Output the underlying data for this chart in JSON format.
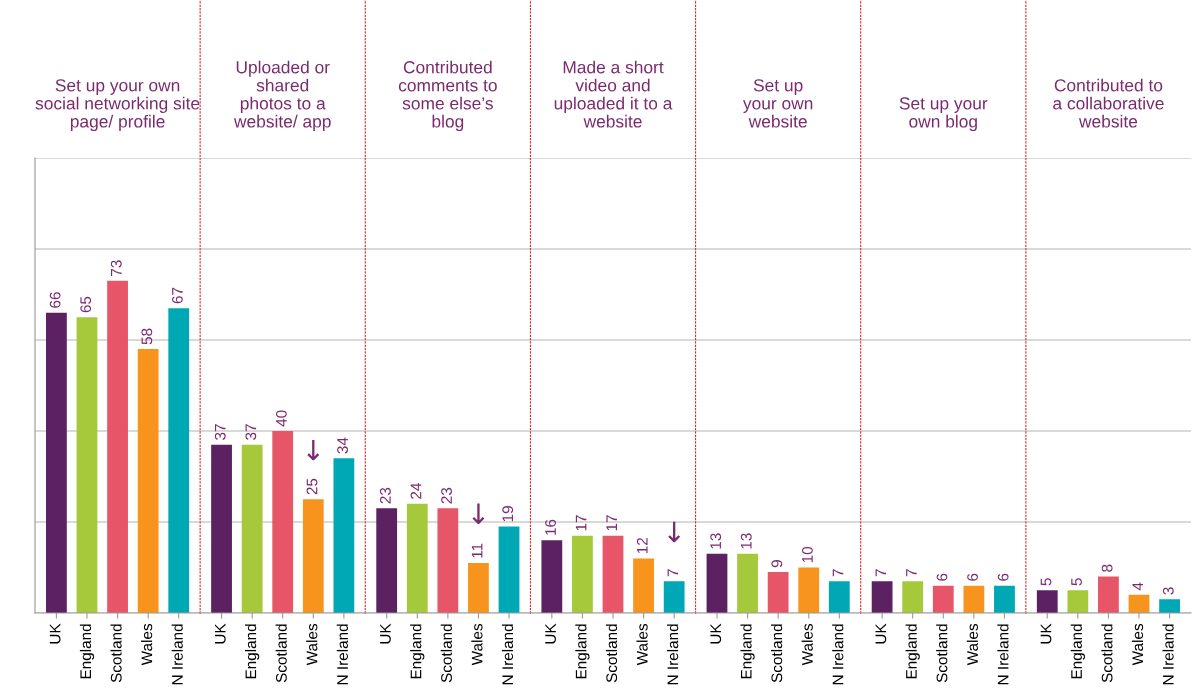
{
  "chart_data": [
    {
      "type": "bar",
      "title": "Set up your own\nsocial networking site\npage/ profile",
      "categories": [
        "UK",
        "England",
        "Scotland",
        "Wales",
        "N Ireland"
      ],
      "values": [
        66,
        65,
        73,
        58,
        67
      ],
      "colors": [
        "#5b2161",
        "#a5c93b",
        "#e65668",
        "#f7941e",
        "#00a8b5"
      ],
      "ylim": [
        0,
        100
      ],
      "yticks": [
        {
          "value": 0,
          "label": null
        },
        {
          "value": 20,
          "label": null
        },
        {
          "value": 40,
          "label": null
        },
        {
          "value": 60,
          "label": null
        },
        {
          "value": 80,
          "label": null
        },
        {
          "value": 100,
          "label": null
        }
      ],
      "tick_labels": "x",
      "grid": "y",
      "data_labels": true
    },
    {
      "type": "bar",
      "title": "Uploaded or\nshared\nphotos to a\nwebsite/ app",
      "categories": [
        "UK",
        "England",
        "Scotland",
        "Wales",
        "N Ireland"
      ],
      "values": [
        37,
        37,
        40,
        25,
        34
      ],
      "colors": [
        "#5b2161",
        "#a5c93b",
        "#e65668",
        "#f7941e",
        "#00a8b5"
      ],
      "ylim": [
        0,
        100
      ],
      "yticks": [
        {
          "value": 0,
          "label": null
        },
        {
          "value": 20,
          "label": null
        },
        {
          "value": 40,
          "label": null
        },
        {
          "value": 60,
          "label": null
        },
        {
          "value": 80,
          "label": null
        },
        {
          "value": 100,
          "label": null
        }
      ],
      "tick_labels": "x",
      "grid": "y",
      "data_labels": true,
      "annotations": [
        {
          "text": "↓",
          "x": "Wales",
          "y": 25
        }
      ]
    },
    {
      "type": "bar",
      "title": "Contributed\ncomments to\nsome else’s\nblog",
      "categories": [
        "UK",
        "England",
        "Scotland",
        "Wales",
        "N Ireland"
      ],
      "values": [
        23,
        24,
        23,
        11,
        19
      ],
      "colors": [
        "#5b2161",
        "#a5c93b",
        "#e65668",
        "#f7941e",
        "#00a8b5"
      ],
      "ylim": [
        0,
        100
      ],
      "yticks": [
        {
          "value": 0,
          "label": null
        },
        {
          "value": 20,
          "label": null
        },
        {
          "value": 40,
          "label": null
        },
        {
          "value": 60,
          "label": null
        },
        {
          "value": 80,
          "label": null
        },
        {
          "value": 100,
          "label": null
        }
      ],
      "tick_labels": "x",
      "grid": "y",
      "data_labels": true,
      "annotations": [
        {
          "text": "↓",
          "x": "Wales",
          "y": 11
        }
      ]
    },
    {
      "type": "bar",
      "title": "Made a short\nvideo and\nuploaded it to a\nwebsite",
      "categories": [
        "UK",
        "England",
        "Scotland",
        "Wales",
        "N Ireland"
      ],
      "values": [
        16,
        17,
        17,
        12,
        7
      ],
      "colors": [
        "#5b2161",
        "#a5c93b",
        "#e65668",
        "#f7941e",
        "#00a8b5"
      ],
      "ylim": [
        0,
        100
      ],
      "yticks": [
        {
          "value": 0,
          "label": null
        },
        {
          "value": 20,
          "label": null
        },
        {
          "value": 40,
          "label": null
        },
        {
          "value": 60,
          "label": null
        },
        {
          "value": 80,
          "label": null
        },
        {
          "value": 100,
          "label": null
        }
      ],
      "tick_labels": "x",
      "grid": "y",
      "data_labels": true,
      "annotations": [
        {
          "text": "↓",
          "x": "N Ireland",
          "y": 7
        }
      ]
    },
    {
      "type": "bar",
      "title": "Set up\nyour own\nwebsite",
      "categories": [
        "UK",
        "England",
        "Scotland",
        "Wales",
        "N Ireland"
      ],
      "values": [
        13,
        13,
        9,
        10,
        7
      ],
      "colors": [
        "#5b2161",
        "#a5c93b",
        "#e65668",
        "#f7941e",
        "#00a8b5"
      ],
      "ylim": [
        0,
        100
      ],
      "yticks": [
        {
          "value": 0,
          "label": null
        },
        {
          "value": 20,
          "label": null
        },
        {
          "value": 40,
          "label": null
        },
        {
          "value": 60,
          "label": null
        },
        {
          "value": 80,
          "label": null
        },
        {
          "value": 100,
          "label": null
        }
      ],
      "tick_labels": "x",
      "grid": "y",
      "data_labels": true
    },
    {
      "type": "bar",
      "title": "Set up your\nown blog",
      "categories": [
        "UK",
        "England",
        "Scotland",
        "Wales",
        "N Ireland"
      ],
      "values": [
        7,
        7,
        6,
        6,
        6
      ],
      "colors": [
        "#5b2161",
        "#a5c93b",
        "#e65668",
        "#f7941e",
        "#00a8b5"
      ],
      "ylim": [
        0,
        100
      ],
      "yticks": [
        {
          "value": 0,
          "label": null
        },
        {
          "value": 20,
          "label": null
        },
        {
          "value": 40,
          "label": null
        },
        {
          "value": 60,
          "label": null
        },
        {
          "value": 80,
          "label": null
        },
        {
          "value": 100,
          "label": null
        }
      ],
      "tick_labels": "x",
      "grid": "y",
      "data_labels": true
    },
    {
      "type": "bar",
      "title": "Contributed to\na collaborative\nwebsite",
      "categories": [
        "UK",
        "England",
        "Scotland",
        "Wales",
        "N Ireland"
      ],
      "values": [
        5,
        5,
        8,
        4,
        3
      ],
      "colors": [
        "#5b2161",
        "#a5c93b",
        "#e65668",
        "#f7941e",
        "#00a8b5"
      ],
      "ylim": [
        0,
        100
      ],
      "yticks": [
        {
          "value": 0,
          "label": null
        },
        {
          "value": 20,
          "label": null
        },
        {
          "value": 40,
          "label": null
        },
        {
          "value": 60,
          "label": null
        },
        {
          "value": 80,
          "label": null
        },
        {
          "value": 100,
          "label": null
        }
      ],
      "tick_labels": "x",
      "grid": "y",
      "data_labels": true
    }
  ]
}
